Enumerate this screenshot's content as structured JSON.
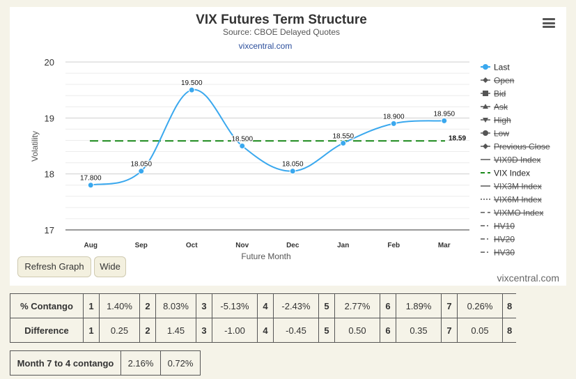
{
  "chart_data": {
    "type": "line",
    "title": "VIX Futures Term Structure",
    "subtitle": "Source: CBOE Delayed Quotes",
    "link": "vixcentral.com",
    "xlabel": "Future Month",
    "ylabel": "Volatility",
    "categories": [
      "Aug",
      "Sep",
      "Oct",
      "Nov",
      "Dec",
      "Jan",
      "Feb",
      "Mar"
    ],
    "ylim": [
      17,
      20
    ],
    "yticks": [
      "17",
      "18",
      "19",
      "20"
    ],
    "series": [
      {
        "name": "Last",
        "values": [
          17.8,
          18.05,
          19.5,
          18.5,
          18.05,
          18.55,
          18.9,
          18.95
        ],
        "labels": [
          "17.800",
          "18.050",
          "19.500",
          "18.500",
          "18.050",
          "18.550",
          "18.900",
          "18.950"
        ],
        "color": "#3aa8ee"
      }
    ],
    "reference": {
      "name": "VIX Index",
      "value": 18.59,
      "label": "18.59",
      "color": "#1a8a1a"
    },
    "grid": true,
    "legend_position": "right",
    "legend": [
      {
        "name": "Last",
        "style": "circle-line",
        "active": true
      },
      {
        "name": "Open",
        "style": "diamond-line",
        "active": false
      },
      {
        "name": "Bid",
        "style": "square-line",
        "active": false
      },
      {
        "name": "Ask",
        "style": "triangle-line",
        "active": false
      },
      {
        "name": "High",
        "style": "triangle-down-line",
        "active": false
      },
      {
        "name": "Low",
        "style": "circle-line",
        "active": false
      },
      {
        "name": "Previous Close",
        "style": "diamond-line",
        "active": false
      },
      {
        "name": "VIX9D Index",
        "style": "line",
        "active": false
      },
      {
        "name": "VIX Index",
        "style": "dash-green",
        "active": true
      },
      {
        "name": "VIX3M Index",
        "style": "line",
        "active": false
      },
      {
        "name": "VIX6M Index",
        "style": "dots",
        "active": false
      },
      {
        "name": "VIXMO Index",
        "style": "dash",
        "active": false
      },
      {
        "name": "HV10",
        "style": "dash-dot",
        "active": false
      },
      {
        "name": "HV20",
        "style": "dash-dot",
        "active": false
      },
      {
        "name": "HV30",
        "style": "dash-dot",
        "active": false
      }
    ]
  },
  "buttons": {
    "refresh": "Refresh Graph",
    "wide": "Wide"
  },
  "watermark": "vixcentral.com",
  "contango": {
    "label": "% Contango",
    "cells": [
      [
        "1",
        "1.40%"
      ],
      [
        "2",
        "8.03%"
      ],
      [
        "3",
        "-5.13%"
      ],
      [
        "4",
        "-2.43%"
      ],
      [
        "5",
        "2.77%"
      ],
      [
        "6",
        "1.89%"
      ],
      [
        "7",
        "0.26%"
      ]
    ],
    "last": "8"
  },
  "difference": {
    "label": "Difference",
    "cells": [
      [
        "1",
        "0.25"
      ],
      [
        "2",
        "1.45"
      ],
      [
        "3",
        "-1.00"
      ],
      [
        "4",
        "-0.45"
      ],
      [
        "5",
        "0.50"
      ],
      [
        "6",
        "0.35"
      ],
      [
        "7",
        "0.05"
      ]
    ],
    "last": "8"
  },
  "month_contango": {
    "label": "Month 7 to 4 contango",
    "v1": "2.16%",
    "v2": "0.72%"
  }
}
